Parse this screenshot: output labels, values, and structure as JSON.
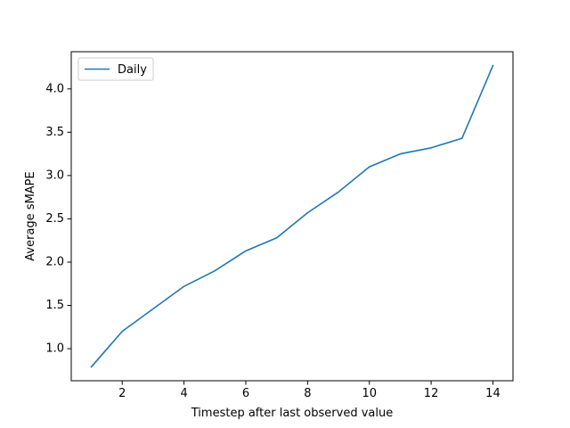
{
  "chart_data": {
    "type": "line",
    "title": "",
    "xlabel": "Timestep after last observed value",
    "ylabel": "Average sMAPE",
    "xlim": [
      0.35,
      14.65
    ],
    "ylim": [
      0.63,
      4.43
    ],
    "xticks": [
      2,
      4,
      6,
      8,
      10,
      12,
      14
    ],
    "xtick_labels": [
      "2",
      "4",
      "6",
      "8",
      "10",
      "12",
      "14"
    ],
    "yticks": [
      1.0,
      1.5,
      2.0,
      2.5,
      3.0,
      3.5,
      4.0
    ],
    "ytick_labels": [
      "1.0",
      "1.5",
      "2.0",
      "2.5",
      "3.0",
      "3.5",
      "4.0"
    ],
    "grid": false,
    "legend_position": "upper-left",
    "series": [
      {
        "name": "Daily",
        "color": "#1f77b4",
        "x": [
          1,
          2,
          3,
          4,
          5,
          6,
          7,
          8,
          9,
          10,
          11,
          12,
          13,
          14
        ],
        "y": [
          0.79,
          1.2,
          1.46,
          1.72,
          1.9,
          2.13,
          2.28,
          2.57,
          2.81,
          3.1,
          3.25,
          3.32,
          3.43,
          4.27
        ]
      }
    ]
  }
}
